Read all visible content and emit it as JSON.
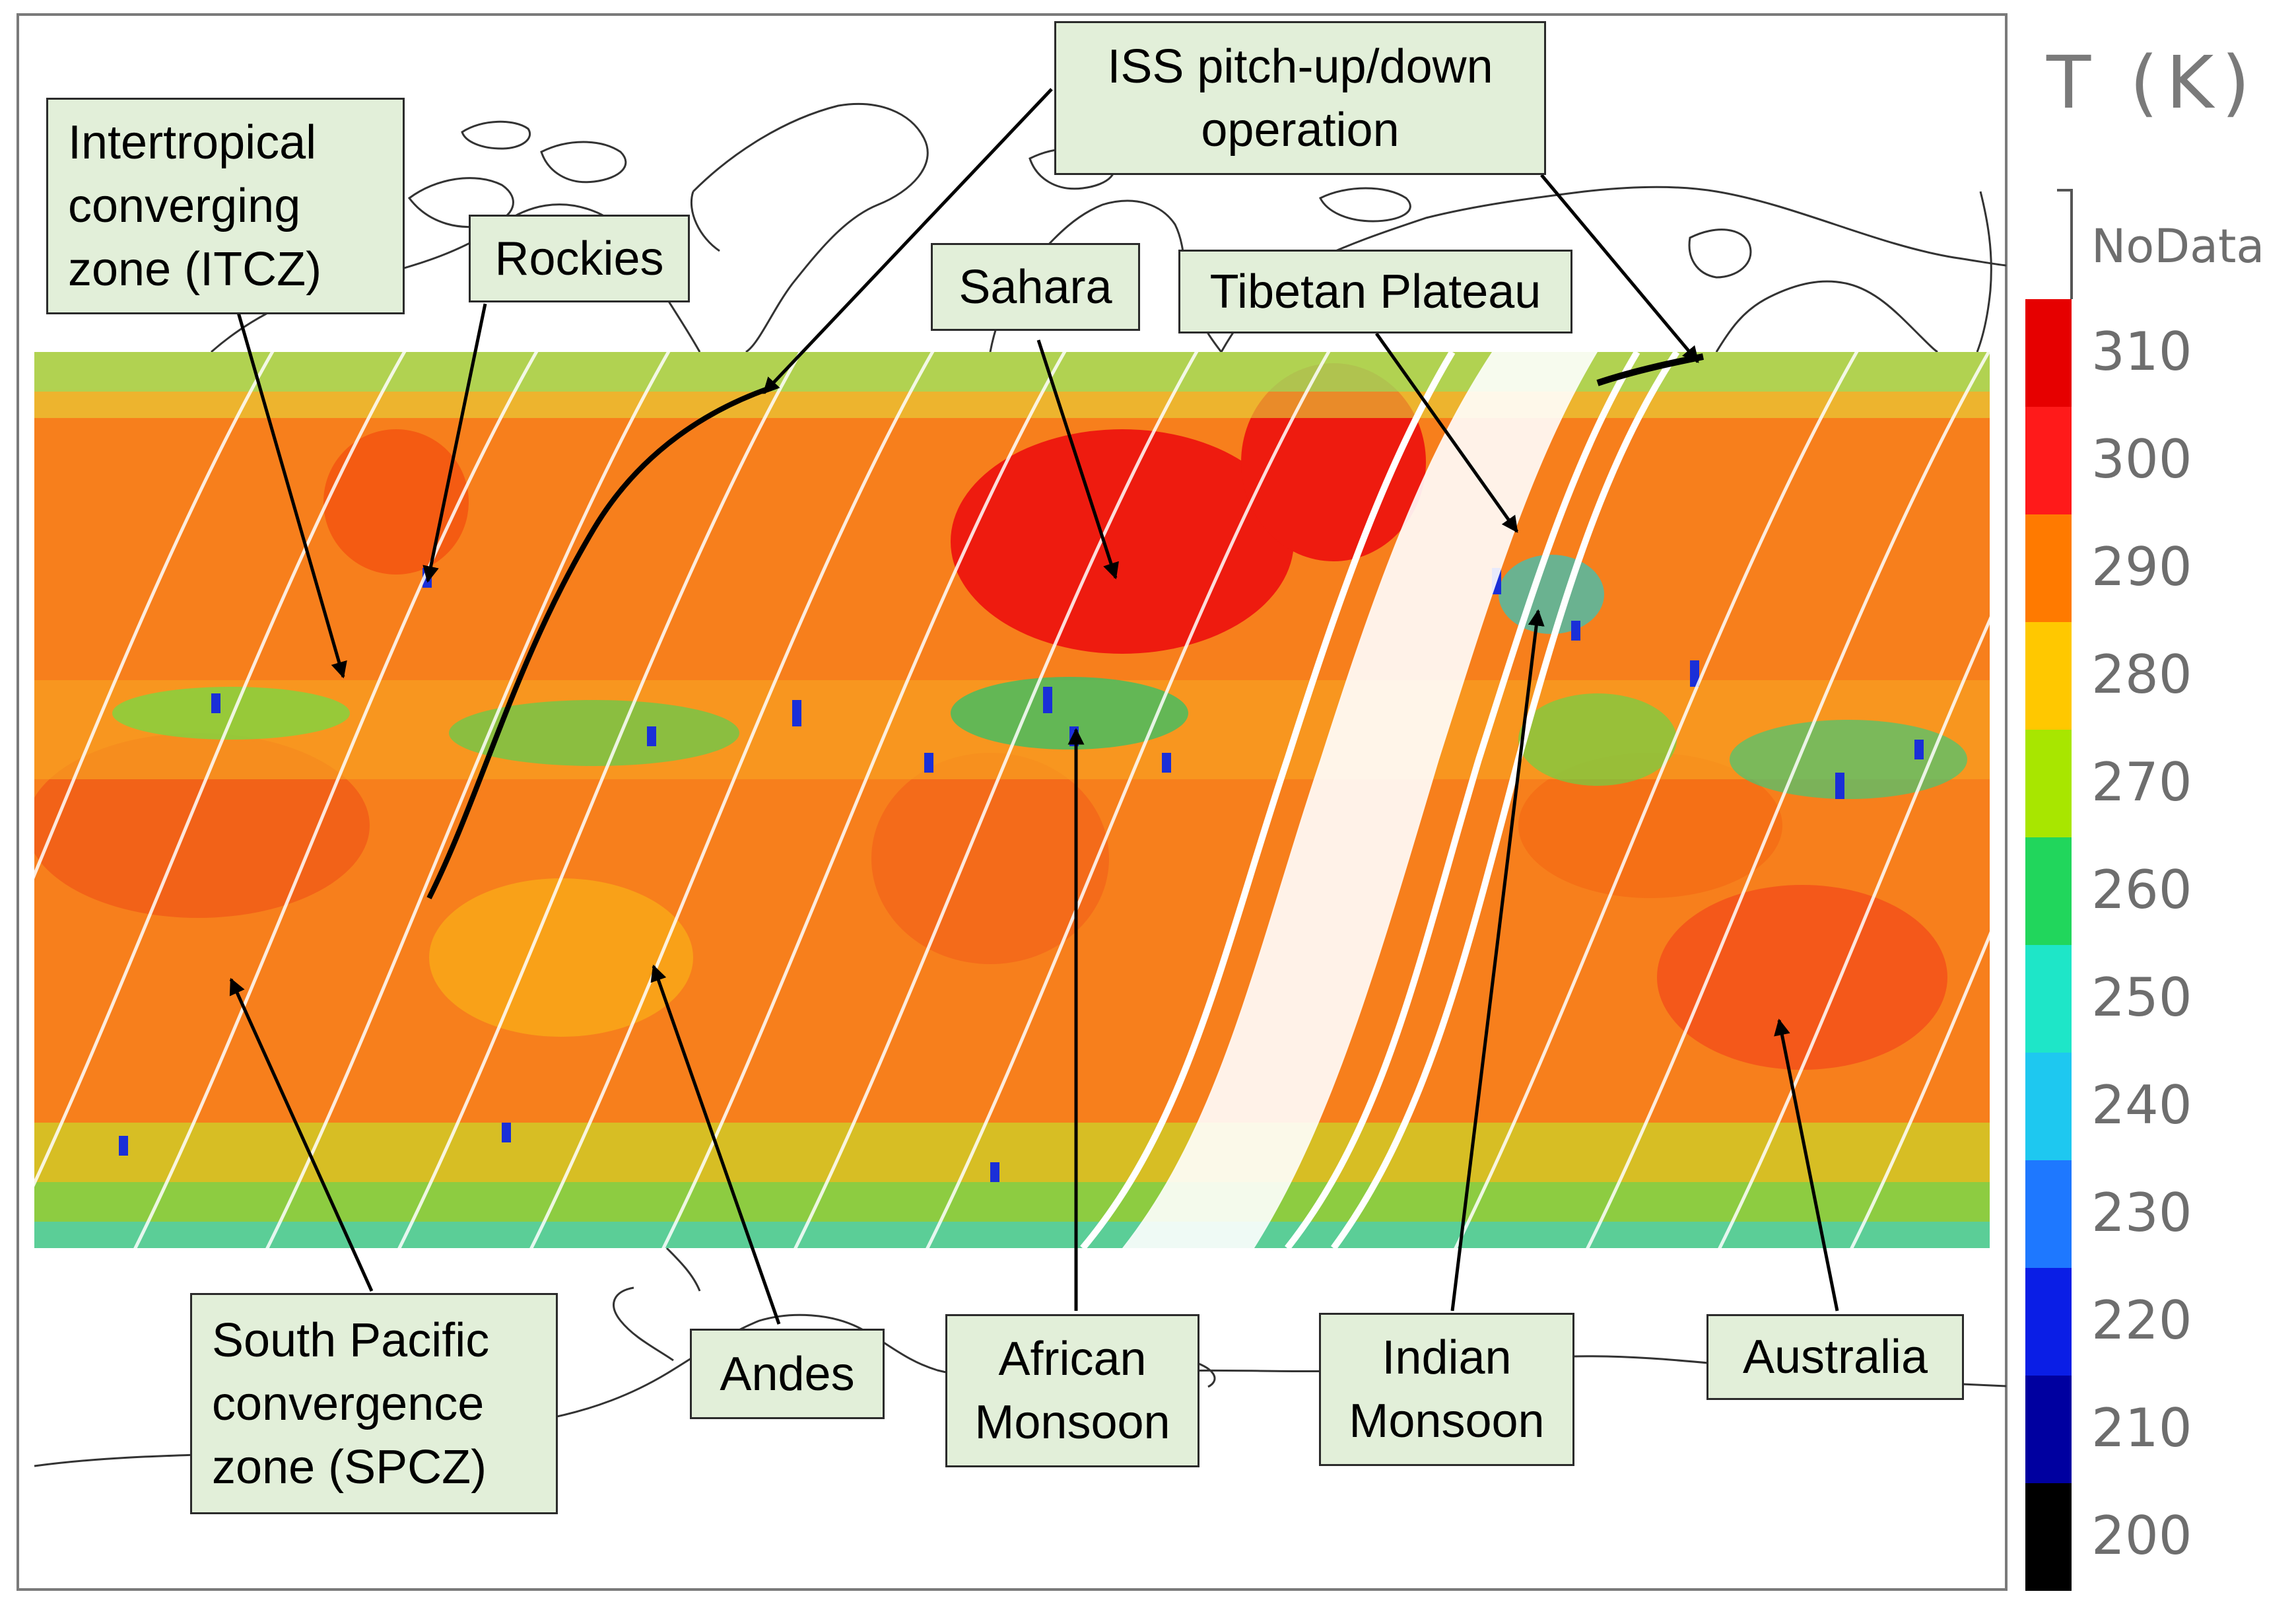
{
  "colorbar": {
    "title": "T (K)",
    "nodata_label": "NoData",
    "nodata_color": "#ffffff",
    "levels": [
      {
        "label": "310",
        "color": "#e60000"
      },
      {
        "label": "300",
        "color": "#ff1a1a"
      },
      {
        "label": "290",
        "color": "#ff7a00"
      },
      {
        "label": "280",
        "color": "#ffc800"
      },
      {
        "label": "270",
        "color": "#a8e600"
      },
      {
        "label": "260",
        "color": "#21d65c"
      },
      {
        "label": "250",
        "color": "#1ee6c8"
      },
      {
        "label": "240",
        "color": "#1ec8f0"
      },
      {
        "label": "230",
        "color": "#1e78ff"
      },
      {
        "label": "220",
        "color": "#0a1ee6"
      },
      {
        "label": "210",
        "color": "#0000a0"
      },
      {
        "label": "200",
        "color": "#000000"
      }
    ]
  },
  "annotations": {
    "itcz": "Intertropical\nconverging\nzone (ITCZ)",
    "rockies": "Rockies",
    "iss": "ISS pitch-up/down\noperation",
    "sahara": "Sahara",
    "tibet": "Tibetan Plateau",
    "spcz": "South Pacific\nconvergence\nzone (SPCZ)",
    "andes": "Andes",
    "african_monsoon": "African\nMonsoon",
    "indian_monsoon": "Indian\nMonsoon",
    "australia": "Australia"
  },
  "colors": {
    "callout_fill": "#e2efd9",
    "coastline": "#333333",
    "arrow": "#000000"
  }
}
